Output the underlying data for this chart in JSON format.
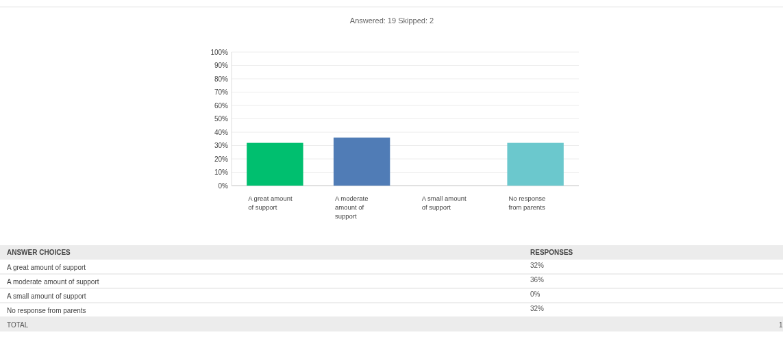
{
  "chart_data": {
    "type": "bar",
    "subtitle": "Answered: 19    Skipped: 2",
    "categories": [
      "A great amount of support",
      "A moderate amount of support",
      "A small amount of support",
      "No response from parents"
    ],
    "values": [
      32,
      36,
      0,
      32
    ],
    "colors": [
      "#00bf6f",
      "#507cb6",
      "#f9be00",
      "#6bc8cd"
    ],
    "ylim": [
      0,
      100
    ],
    "yticks": [
      {
        "value": 0,
        "label": "0%"
      },
      {
        "value": 10,
        "label": "10%"
      },
      {
        "value": 20,
        "label": "20%"
      },
      {
        "value": 30,
        "label": "30%"
      },
      {
        "value": 40,
        "label": "40%"
      },
      {
        "value": 50,
        "label": "50%"
      },
      {
        "value": 60,
        "label": "60%"
      },
      {
        "value": 70,
        "label": "70%"
      },
      {
        "value": 80,
        "label": "80%"
      },
      {
        "value": 90,
        "label": "90%"
      },
      {
        "value": 100,
        "label": "100%"
      }
    ],
    "grid": "y",
    "annotations": [
      "ANSWER CHOICES",
      "RESPONSES",
      "32%",
      "36%",
      "0%",
      "32%",
      "TOTAL",
      "1"
    ]
  }
}
